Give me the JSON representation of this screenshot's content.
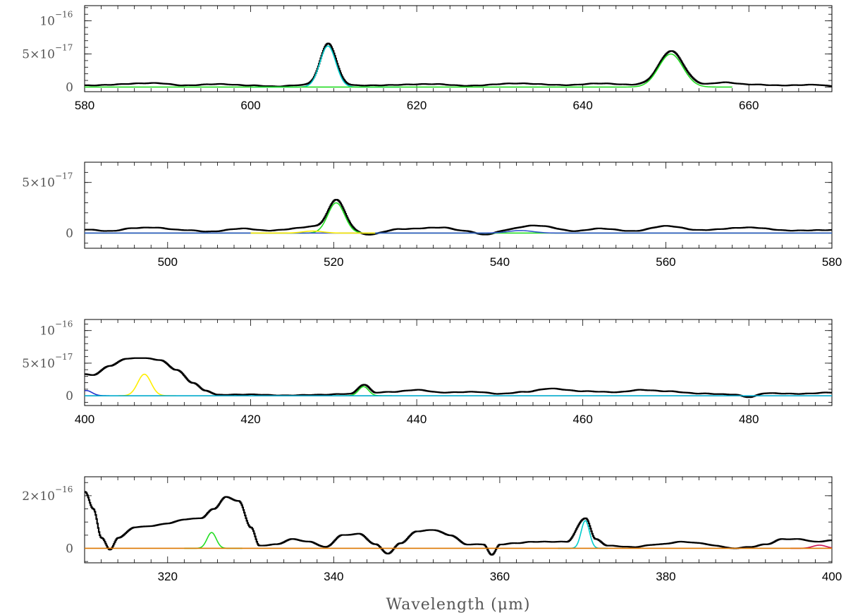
{
  "chart_data": {
    "type": "line",
    "xlabel": "Wavelength (μm)",
    "panels": [
      {
        "id": "p1",
        "xlim": [
          580,
          670
        ],
        "ylim": [
          -7e-18,
          1.23e-16
        ],
        "xticks": [
          {
            "v": 580,
            "t": "580"
          },
          {
            "v": 600,
            "t": "600"
          },
          {
            "v": 620,
            "t": "620"
          },
          {
            "v": 640,
            "t": "640"
          },
          {
            "v": 660,
            "t": "660"
          }
        ],
        "yticks": [
          {
            "v": 0,
            "t": "0",
            "sup": ""
          },
          {
            "v": 5e-17,
            "t": "5×10",
            "sup": "−17"
          },
          {
            "v": 1e-16,
            "t": "10",
            "sup": "−16"
          }
        ],
        "baseline": [
          [
            580,
            2.5e-18
          ],
          [
            588.5,
            6e-18
          ],
          [
            592,
            2.5e-18
          ],
          [
            596,
            4.5e-18
          ],
          [
            600,
            2.5e-18
          ],
          [
            603,
            1e-18
          ],
          [
            606,
            3e-18
          ],
          [
            614,
            2.5e-18
          ],
          [
            622,
            4.5e-18
          ],
          [
            626,
            2e-18
          ],
          [
            632,
            5.5e-18
          ],
          [
            638,
            3e-18
          ],
          [
            642,
            5.5e-18
          ],
          [
            646,
            3.5e-18
          ],
          [
            654,
            3.5e-18
          ],
          [
            657,
            7e-18
          ],
          [
            660,
            4e-18
          ],
          [
            664,
            2.5e-18
          ],
          [
            668,
            3.5e-18
          ],
          [
            670,
            1.5e-18
          ]
        ],
        "lines": [
          {
            "c": 609.3,
            "a": 6.2e-17,
            "s": 0.95,
            "color": "#00cccc",
            "range": [
              600,
              618
            ]
          },
          {
            "c": 650.6,
            "a": 5e-17,
            "s": 1.45,
            "color": "#22dd22",
            "range": [
              580,
              658
            ]
          }
        ]
      },
      {
        "id": "p2",
        "xlim": [
          490,
          580
        ],
        "ylim": [
          -1.5e-17,
          7e-17
        ],
        "xticks": [
          {
            "v": 500,
            "t": "500"
          },
          {
            "v": 520,
            "t": "520"
          },
          {
            "v": 540,
            "t": "540"
          },
          {
            "v": 560,
            "t": "560"
          },
          {
            "v": 580,
            "t": "580"
          }
        ],
        "yticks": [
          {
            "v": 0,
            "t": "0",
            "sup": ""
          },
          {
            "v": 5e-17,
            "t": "5×10",
            "sup": "−17"
          }
        ],
        "baseline": [
          [
            490,
            3.5e-18
          ],
          [
            493,
            2e-18
          ],
          [
            496,
            5e-18
          ],
          [
            498,
            5.5e-18
          ],
          [
            502,
            3e-18
          ],
          [
            505,
            1.5e-18
          ],
          [
            509,
            4.5e-18
          ],
          [
            512,
            2.5e-18
          ],
          [
            516,
            4.5e-18
          ],
          [
            522,
            2e-18
          ],
          [
            524,
            -1.5e-18
          ],
          [
            528,
            4e-18
          ],
          [
            533,
            5.5e-18
          ],
          [
            536,
            2e-18
          ],
          [
            538,
            -1.5e-18
          ],
          [
            541,
            2e-18
          ],
          [
            545,
            6.5e-18
          ],
          [
            549,
            2e-18
          ],
          [
            552,
            4.5e-18
          ],
          [
            556,
            2e-18
          ],
          [
            560,
            7e-18
          ],
          [
            564,
            3e-18
          ],
          [
            570,
            5.5e-18
          ],
          [
            575,
            2.5e-18
          ],
          [
            580,
            3e-18
          ]
        ],
        "lines": [
          {
            "c": 520.3,
            "a": 3e-17,
            "s": 1.0,
            "color": "#22dd22",
            "range": [
              490,
              580
            ]
          },
          {
            "c": 542.5,
            "a": 2.5e-18,
            "s": 1.5,
            "color": "#3355cc",
            "range": [
              490,
              580
            ]
          },
          {
            "c": 517.5,
            "a": 2e-18,
            "s": 1.2,
            "color": "#ffee00",
            "range": [
              510,
              525
            ]
          }
        ]
      },
      {
        "id": "p3",
        "xlim": [
          400,
          490
        ],
        "ylim": [
          -1.5e-17,
          1.17e-16
        ],
        "xticks": [
          {
            "v": 400,
            "t": "400"
          },
          {
            "v": 420,
            "t": "420"
          },
          {
            "v": 440,
            "t": "440"
          },
          {
            "v": 460,
            "t": "460"
          },
          {
            "v": 480,
            "t": "480"
          }
        ],
        "yticks": [
          {
            "v": 0,
            "t": "0",
            "sup": ""
          },
          {
            "v": 5e-17,
            "t": "5×10",
            "sup": "−17"
          },
          {
            "v": 1e-16,
            "t": "10",
            "sup": "−16"
          }
        ],
        "baseline": [
          [
            400,
            3.3e-17
          ],
          [
            401,
            3.2e-17
          ],
          [
            403,
            4.6e-17
          ],
          [
            405,
            5.7e-17
          ],
          [
            407,
            5.8e-17
          ],
          [
            409,
            5.5e-17
          ],
          [
            411,
            4e-17
          ],
          [
            413,
            2e-17
          ],
          [
            414.5,
            8e-18
          ],
          [
            416,
            1.5e-18
          ],
          [
            420,
            2e-18
          ],
          [
            424,
            5e-19
          ],
          [
            428,
            1.5e-18
          ],
          [
            432,
            3e-18
          ],
          [
            433.6,
            1.7e-17
          ],
          [
            435,
            5e-18
          ],
          [
            437,
            6e-18
          ],
          [
            440,
            9e-18
          ],
          [
            443,
            5e-18
          ],
          [
            447,
            6e-18
          ],
          [
            450,
            3e-18
          ],
          [
            453,
            6e-18
          ],
          [
            456,
            1.1e-17
          ],
          [
            460,
            7e-18
          ],
          [
            464,
            5.5e-18
          ],
          [
            467,
            9e-18
          ],
          [
            470,
            7e-18
          ],
          [
            474,
            3.5e-18
          ],
          [
            478,
            2e-18
          ],
          [
            480,
            -2e-18
          ],
          [
            482,
            4e-18
          ],
          [
            486,
            3e-18
          ],
          [
            490,
            5e-18
          ]
        ],
        "lines": [
          {
            "c": 407.2,
            "a": 3.3e-17,
            "s": 0.8,
            "color": "#ffee00",
            "range": [
              404,
              411
            ]
          },
          {
            "c": 400.2,
            "a": 8e-18,
            "s": 0.7,
            "color": "#2233cc",
            "range": [
              400,
              403
            ]
          },
          {
            "c": 433.6,
            "a": 1.4e-17,
            "s": 0.6,
            "color": "#22dd22",
            "range": [
              430,
              437
            ]
          },
          {
            "c": 480.5,
            "a": 0.0,
            "s": 1.0,
            "color": "#00aacc",
            "range": [
              400,
              490
            ]
          }
        ]
      },
      {
        "id": "p4",
        "xlim": [
          310,
          400
        ],
        "ylim": [
          -5.5e-17,
          2.72e-16
        ],
        "xticks": [
          {
            "v": 320,
            "t": "320"
          },
          {
            "v": 340,
            "t": "340"
          },
          {
            "v": 360,
            "t": "360"
          },
          {
            "v": 380,
            "t": "380"
          },
          {
            "v": 400,
            "t": "400"
          }
        ],
        "yticks": [
          {
            "v": 0,
            "t": "0",
            "sup": ""
          },
          {
            "v": 2e-16,
            "t": "2×10",
            "sup": "−16"
          }
        ],
        "baseline": [
          [
            310,
            2.15e-16
          ],
          [
            311,
            1.5e-16
          ],
          [
            312,
            4e-17
          ],
          [
            313,
            -5e-18
          ],
          [
            314,
            4e-17
          ],
          [
            316,
            8e-17
          ],
          [
            318,
            8.5e-17
          ],
          [
            320,
            9.5e-17
          ],
          [
            322,
            1.1e-16
          ],
          [
            324,
            1.15e-16
          ],
          [
            325.5,
            1.5e-16
          ],
          [
            327,
            1.95e-16
          ],
          [
            328.5,
            1.8e-16
          ],
          [
            330,
            8e-17
          ],
          [
            331,
            1e-17
          ],
          [
            333,
            1.5e-17
          ],
          [
            335,
            3.5e-17
          ],
          [
            337,
            2.5e-17
          ],
          [
            339,
            5e-18
          ],
          [
            341,
            5e-17
          ],
          [
            343,
            5.5e-17
          ],
          [
            345,
            1.5e-17
          ],
          [
            346.5,
            -2e-17
          ],
          [
            348,
            2e-17
          ],
          [
            350,
            6.5e-17
          ],
          [
            352,
            7e-17
          ],
          [
            354,
            5e-17
          ],
          [
            356,
            1.5e-17
          ],
          [
            358,
            1.5e-17
          ],
          [
            359,
            -2.5e-17
          ],
          [
            360,
            1.5e-17
          ],
          [
            362,
            2e-17
          ],
          [
            364,
            2.5e-17
          ],
          [
            366,
            2.5e-17
          ],
          [
            368,
            2.5e-17
          ],
          [
            370.3,
            1.15e-16
          ],
          [
            371.5,
            3.5e-17
          ],
          [
            373,
            1e-17
          ],
          [
            376,
            5e-18
          ],
          [
            379,
            1.5e-17
          ],
          [
            382,
            2.5e-17
          ],
          [
            384,
            2e-17
          ],
          [
            386,
            1e-17
          ],
          [
            388,
            0.0
          ],
          [
            390,
            5e-18
          ],
          [
            392,
            1.5e-17
          ],
          [
            394,
            3.5e-17
          ],
          [
            396,
            3.5e-17
          ],
          [
            398,
            2.5e-17
          ],
          [
            400,
            3e-17
          ]
        ],
        "lines": [
          {
            "c": 325.3,
            "a": 6e-17,
            "s": 0.55,
            "color": "#22dd22",
            "range": [
              322,
              329
            ]
          },
          {
            "c": 370.3,
            "a": 1.05e-16,
            "s": 0.5,
            "color": "#00cccc",
            "range": [
              367,
              373
            ]
          },
          {
            "c": 398.5,
            "a": 1.2e-17,
            "s": 0.8,
            "color": "#cc1155",
            "range": [
              395,
              400
            ]
          },
          {
            "c": 380,
            "a": 0.0,
            "s": 1.0,
            "color": "#dd7700",
            "range": [
              310,
              400
            ]
          }
        ]
      }
    ]
  }
}
